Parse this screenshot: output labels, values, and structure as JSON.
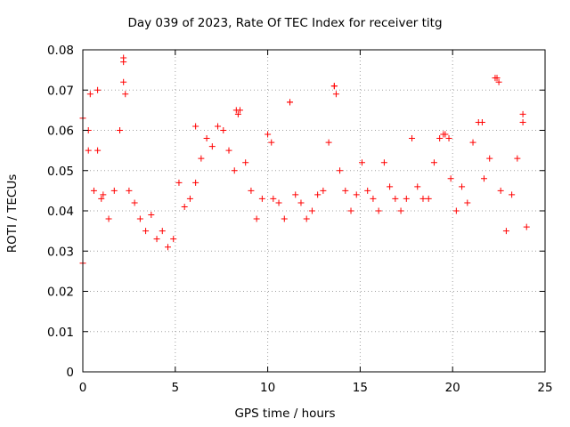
{
  "chart_data": {
    "type": "scatter",
    "title": "Day 039 of 2023, Rate Of TEC Index for receiver titg",
    "xlabel": "GPS time / hours",
    "ylabel": "ROTI / TECUs",
    "xlim": [
      0,
      25
    ],
    "ylim": [
      0,
      0.08
    ],
    "x_ticks": [
      "0",
      "5",
      "10",
      "15",
      "20",
      "25"
    ],
    "y_ticks": [
      "0",
      "0.01",
      "0.02",
      "0.03",
      "0.04",
      "0.05",
      "0.06",
      "0.07",
      "0.08"
    ],
    "grid": true,
    "marker": "+",
    "color": "#ff0000",
    "series": [
      {
        "x": [
          0.0,
          0.3,
          0.6,
          0.8,
          1.1,
          1.4,
          1.7,
          2.0,
          2.2,
          2.5,
          2.8,
          3.1,
          3.4,
          3.7,
          4.0,
          4.3,
          4.6,
          4.9,
          5.2,
          5.5,
          5.8,
          6.1,
          6.4,
          6.7,
          7.0,
          7.3,
          7.6,
          7.9,
          8.2,
          8.5,
          8.8,
          9.1,
          9.4,
          9.7,
          10.0,
          10.3,
          10.6,
          10.9,
          11.2,
          11.5,
          11.8,
          12.1,
          12.4,
          12.7,
          13.0,
          13.3,
          13.6,
          13.9,
          14.2,
          14.5,
          14.8,
          15.1,
          15.4,
          15.7,
          16.0,
          16.3,
          16.6,
          16.9,
          17.2,
          17.5,
          17.8,
          18.1,
          18.4,
          18.7,
          19.0,
          19.3,
          19.6,
          19.9,
          20.2,
          20.5,
          20.8,
          21.1,
          21.4,
          21.7,
          22.0,
          22.3,
          22.6,
          22.9,
          23.2,
          23.5,
          23.8,
          24.0,
          0.0,
          0.4,
          0.8,
          2.2,
          2.2,
          2.3,
          8.3,
          8.4,
          11.2,
          13.6,
          13.7,
          22.4,
          22.5,
          23.8,
          21.6,
          19.5,
          19.8,
          0.3,
          1.0,
          6.1,
          2.0,
          10.2
        ],
        "y": [
          0.063,
          0.055,
          0.045,
          0.07,
          0.044,
          0.038,
          0.045,
          0.06,
          0.078,
          0.045,
          0.042,
          0.038,
          0.035,
          0.039,
          0.033,
          0.035,
          0.031,
          0.033,
          0.047,
          0.041,
          0.043,
          0.047,
          0.053,
          0.058,
          0.056,
          0.061,
          0.06,
          0.055,
          0.05,
          0.065,
          0.052,
          0.045,
          0.038,
          0.043,
          0.059,
          0.043,
          0.042,
          0.038,
          0.067,
          0.044,
          0.042,
          0.038,
          0.04,
          0.044,
          0.045,
          0.057,
          0.071,
          0.05,
          0.045,
          0.04,
          0.044,
          0.052,
          0.045,
          0.043,
          0.04,
          0.052,
          0.046,
          0.043,
          0.04,
          0.043,
          0.058,
          0.046,
          0.043,
          0.043,
          0.052,
          0.058,
          0.059,
          0.048,
          0.04,
          0.046,
          0.042,
          0.057,
          0.062,
          0.048,
          0.053,
          0.073,
          0.045,
          0.035,
          0.044,
          0.053,
          0.064,
          0.036,
          0.027,
          0.069,
          0.055,
          0.077,
          0.072,
          0.069,
          0.065,
          0.064,
          0.067,
          0.071,
          0.069,
          0.073,
          0.072,
          0.062,
          0.062,
          0.059,
          0.058,
          0.06,
          0.043,
          0.061,
          0.06,
          0.057
        ]
      }
    ]
  }
}
